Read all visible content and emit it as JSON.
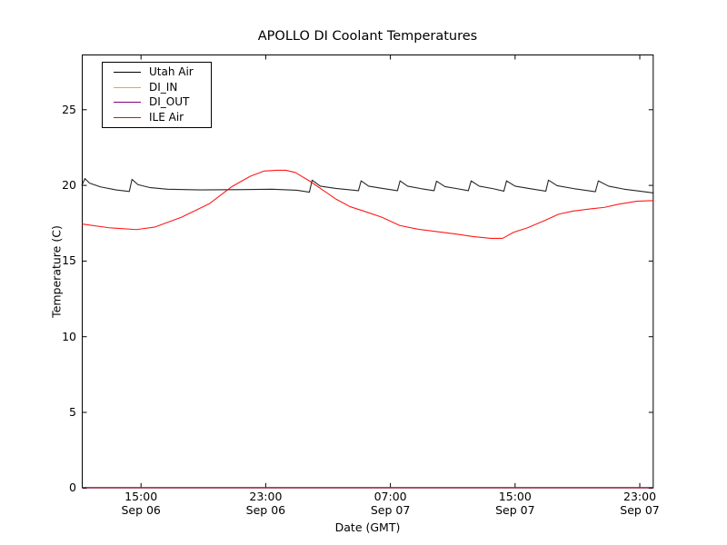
{
  "chart_data": {
    "type": "line",
    "title": "APOLLO DI Coolant Temperatures",
    "xlabel": "Date (GMT)",
    "ylabel": "Temperature (C)",
    "grid": false,
    "legend_position": "upper left",
    "x_unit": "hours since Sep 06 00:00 GMT",
    "xlim": [
      11.2,
      47.89
    ],
    "ylim": [
      0,
      28.65
    ],
    "y_ticks": [
      "0",
      "5",
      "10",
      "15",
      "20",
      "25"
    ],
    "y_tick_values": [
      0,
      5,
      10,
      15,
      20,
      25
    ],
    "x_ticks": [
      {
        "value": 15,
        "label": "15:00",
        "sublabel": "Sep 06"
      },
      {
        "value": 23,
        "label": "23:00",
        "sublabel": "Sep 06"
      },
      {
        "value": 31,
        "label": "07:00",
        "sublabel": "Sep 07"
      },
      {
        "value": 39,
        "label": "15:00",
        "sublabel": "Sep 07"
      },
      {
        "value": 47,
        "label": "23:00",
        "sublabel": "Sep 07"
      }
    ],
    "series": [
      {
        "name": "Utah Air",
        "color": "#000000",
        "opacity": 0.85,
        "points": [
          [
            11.2,
            20.0
          ],
          [
            11.4,
            20.45
          ],
          [
            11.7,
            20.15
          ],
          [
            12.4,
            19.9
          ],
          [
            13.4,
            19.7
          ],
          [
            14.25,
            19.6
          ],
          [
            14.42,
            20.4
          ],
          [
            14.8,
            20.05
          ],
          [
            15.6,
            19.85
          ],
          [
            16.7,
            19.75
          ],
          [
            18.8,
            19.7
          ],
          [
            21.1,
            19.72
          ],
          [
            23.4,
            19.75
          ],
          [
            25.0,
            19.68
          ],
          [
            25.8,
            19.55
          ],
          [
            25.98,
            20.35
          ],
          [
            26.5,
            19.95
          ],
          [
            27.5,
            19.8
          ],
          [
            28.95,
            19.65
          ],
          [
            29.12,
            20.3
          ],
          [
            29.6,
            19.95
          ],
          [
            30.5,
            19.8
          ],
          [
            31.45,
            19.65
          ],
          [
            31.62,
            20.3
          ],
          [
            32.1,
            19.95
          ],
          [
            33.0,
            19.78
          ],
          [
            33.8,
            19.65
          ],
          [
            33.96,
            20.28
          ],
          [
            34.5,
            19.92
          ],
          [
            35.3,
            19.78
          ],
          [
            36.0,
            19.65
          ],
          [
            36.18,
            20.3
          ],
          [
            36.7,
            19.95
          ],
          [
            37.6,
            19.78
          ],
          [
            38.28,
            19.62
          ],
          [
            38.45,
            20.3
          ],
          [
            39.0,
            19.95
          ],
          [
            40.0,
            19.78
          ],
          [
            40.97,
            19.62
          ],
          [
            41.14,
            20.35
          ],
          [
            41.7,
            19.98
          ],
          [
            42.8,
            19.78
          ],
          [
            44.15,
            19.58
          ],
          [
            44.34,
            20.3
          ],
          [
            45.0,
            19.95
          ],
          [
            46.0,
            19.75
          ],
          [
            47.0,
            19.62
          ],
          [
            47.89,
            19.5
          ]
        ]
      },
      {
        "name": "DI_IN",
        "color": "#ffa500",
        "opacity": 0.55,
        "points": [
          [
            11.2,
            0
          ],
          [
            47.89,
            0
          ]
        ]
      },
      {
        "name": "DI_OUT",
        "color": "#800080",
        "opacity": 0.55,
        "points": [
          [
            11.2,
            0
          ],
          [
            47.89,
            0
          ]
        ]
      },
      {
        "name": "ILE Air",
        "color": "#ff0000",
        "opacity": 0.9,
        "points": [
          [
            11.2,
            17.45
          ],
          [
            12.95,
            17.2
          ],
          [
            14.7,
            17.08
          ],
          [
            15.9,
            17.25
          ],
          [
            17.6,
            17.9
          ],
          [
            19.4,
            18.8
          ],
          [
            20.8,
            19.9
          ],
          [
            22.0,
            20.6
          ],
          [
            22.9,
            20.95
          ],
          [
            23.7,
            21.0
          ],
          [
            24.3,
            21.0
          ],
          [
            24.9,
            20.85
          ],
          [
            25.8,
            20.3
          ],
          [
            26.65,
            19.7
          ],
          [
            27.5,
            19.1
          ],
          [
            28.4,
            18.6
          ],
          [
            29.3,
            18.3
          ],
          [
            30.45,
            17.9
          ],
          [
            31.6,
            17.35
          ],
          [
            32.8,
            17.1
          ],
          [
            33.95,
            16.95
          ],
          [
            35.1,
            16.8
          ],
          [
            36.3,
            16.62
          ],
          [
            37.45,
            16.5
          ],
          [
            38.2,
            16.5
          ],
          [
            38.9,
            16.9
          ],
          [
            39.8,
            17.2
          ],
          [
            40.95,
            17.7
          ],
          [
            41.8,
            18.1
          ],
          [
            42.7,
            18.3
          ],
          [
            43.85,
            18.45
          ],
          [
            44.75,
            18.55
          ],
          [
            45.6,
            18.75
          ],
          [
            46.8,
            18.95
          ],
          [
            47.89,
            19.0
          ]
        ]
      }
    ]
  }
}
